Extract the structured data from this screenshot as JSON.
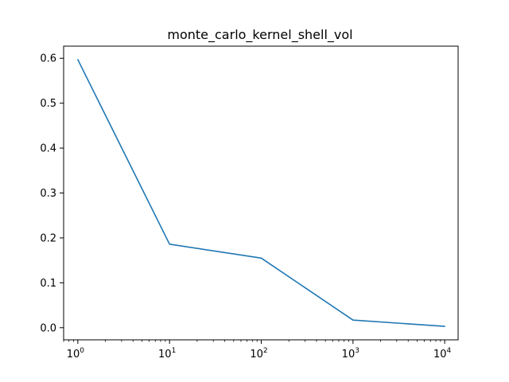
{
  "chart_data": {
    "type": "line",
    "title": "monte_carlo_kernel_shell_vol",
    "xlabel": "",
    "ylabel": "",
    "xscale": "log",
    "x": [
      1,
      10,
      100,
      1000,
      10000
    ],
    "series": [
      {
        "values": [
          0.597,
          0.186,
          0.155,
          0.017,
          0.003
        ],
        "color": "#1f77b4"
      }
    ],
    "xlim": [
      0.7,
      14000
    ],
    "ylim": [
      -0.027,
      0.627
    ],
    "xticks": [
      {
        "value": 1,
        "base": "10",
        "exp": "0"
      },
      {
        "value": 10,
        "base": "10",
        "exp": "1"
      },
      {
        "value": 100,
        "base": "10",
        "exp": "2"
      },
      {
        "value": 1000,
        "base": "10",
        "exp": "3"
      },
      {
        "value": 10000,
        "base": "10",
        "exp": "4"
      }
    ],
    "yticks": [
      {
        "value": 0.0,
        "label": "0.0"
      },
      {
        "value": 0.1,
        "label": "0.1"
      },
      {
        "value": 0.2,
        "label": "0.2"
      },
      {
        "value": 0.3,
        "label": "0.3"
      },
      {
        "value": 0.4,
        "label": "0.4"
      },
      {
        "value": 0.5,
        "label": "0.5"
      },
      {
        "value": 0.6,
        "label": "0.6"
      }
    ],
    "grid": false,
    "legend": "none"
  }
}
